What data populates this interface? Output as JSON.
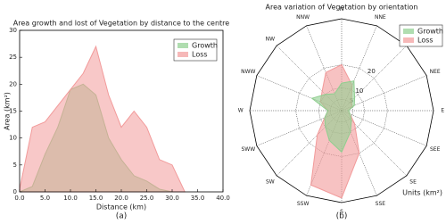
{
  "chart_data": [
    {
      "type": "area",
      "title": "Area growth and lost of Vegetation by distance to the centre",
      "xlabel": "Distance (km)",
      "ylabel": "Area (km²)",
      "caption": "(a)",
      "x": [
        0,
        2.5,
        5,
        7.5,
        10,
        12.5,
        15,
        17.5,
        20,
        22.5,
        25,
        27.5,
        30,
        32.5
      ],
      "series": [
        {
          "name": "Growth",
          "color": "#8fce8f",
          "values": [
            0,
            1,
            7,
            12,
            19,
            20,
            18,
            10,
            6,
            3,
            2,
            0.5,
            0,
            0
          ]
        },
        {
          "name": "Loss",
          "color": "#f29a9a",
          "values": [
            0.5,
            12,
            13,
            16,
            19,
            22,
            27,
            18,
            12,
            15,
            12,
            6,
            5,
            0
          ]
        }
      ],
      "xlim": [
        0,
        40
      ],
      "xticks": [
        {
          "value": 0,
          "label": "0.0"
        },
        {
          "value": 5,
          "label": "5.0"
        },
        {
          "value": 10,
          "label": "10.0"
        },
        {
          "value": 15,
          "label": "15.0"
        },
        {
          "value": 20,
          "label": "20.0"
        },
        {
          "value": 25,
          "label": "25.0"
        },
        {
          "value": 30,
          "label": "30.0"
        },
        {
          "value": 35,
          "label": "35.0"
        },
        {
          "value": 40,
          "label": "40.0"
        }
      ],
      "ylim": [
        0,
        30
      ],
      "yticks": [
        0,
        5,
        10,
        15,
        20,
        25,
        30
      ],
      "legend": "upper right"
    },
    {
      "type": "radar",
      "title": "Area variation of Vegetation by orientation",
      "caption": "(b)",
      "note": "Units (km²)",
      "categories": [
        "N",
        "NNE",
        "NE",
        "NEE",
        "E",
        "SEE",
        "SE",
        "SSE",
        "S",
        "SSW",
        "SW",
        "SWW",
        "W",
        "NWW",
        "NW",
        "NNW"
      ],
      "series": [
        {
          "name": "Growth",
          "color": "#8fce8f",
          "values": [
            12,
            14,
            8,
            6,
            3,
            4,
            6,
            10,
            18,
            14,
            10,
            8,
            6,
            14,
            10,
            8
          ]
        },
        {
          "name": "Loss",
          "color": "#f29a9a",
          "values": [
            20,
            12,
            6,
            5,
            3,
            4,
            8,
            20,
            38,
            35,
            15,
            8,
            6,
            10,
            12,
            18
          ]
        }
      ],
      "rlim": [
        0,
        40
      ],
      "rticks": [
        5,
        10,
        20
      ],
      "legend": "upper right"
    }
  ]
}
